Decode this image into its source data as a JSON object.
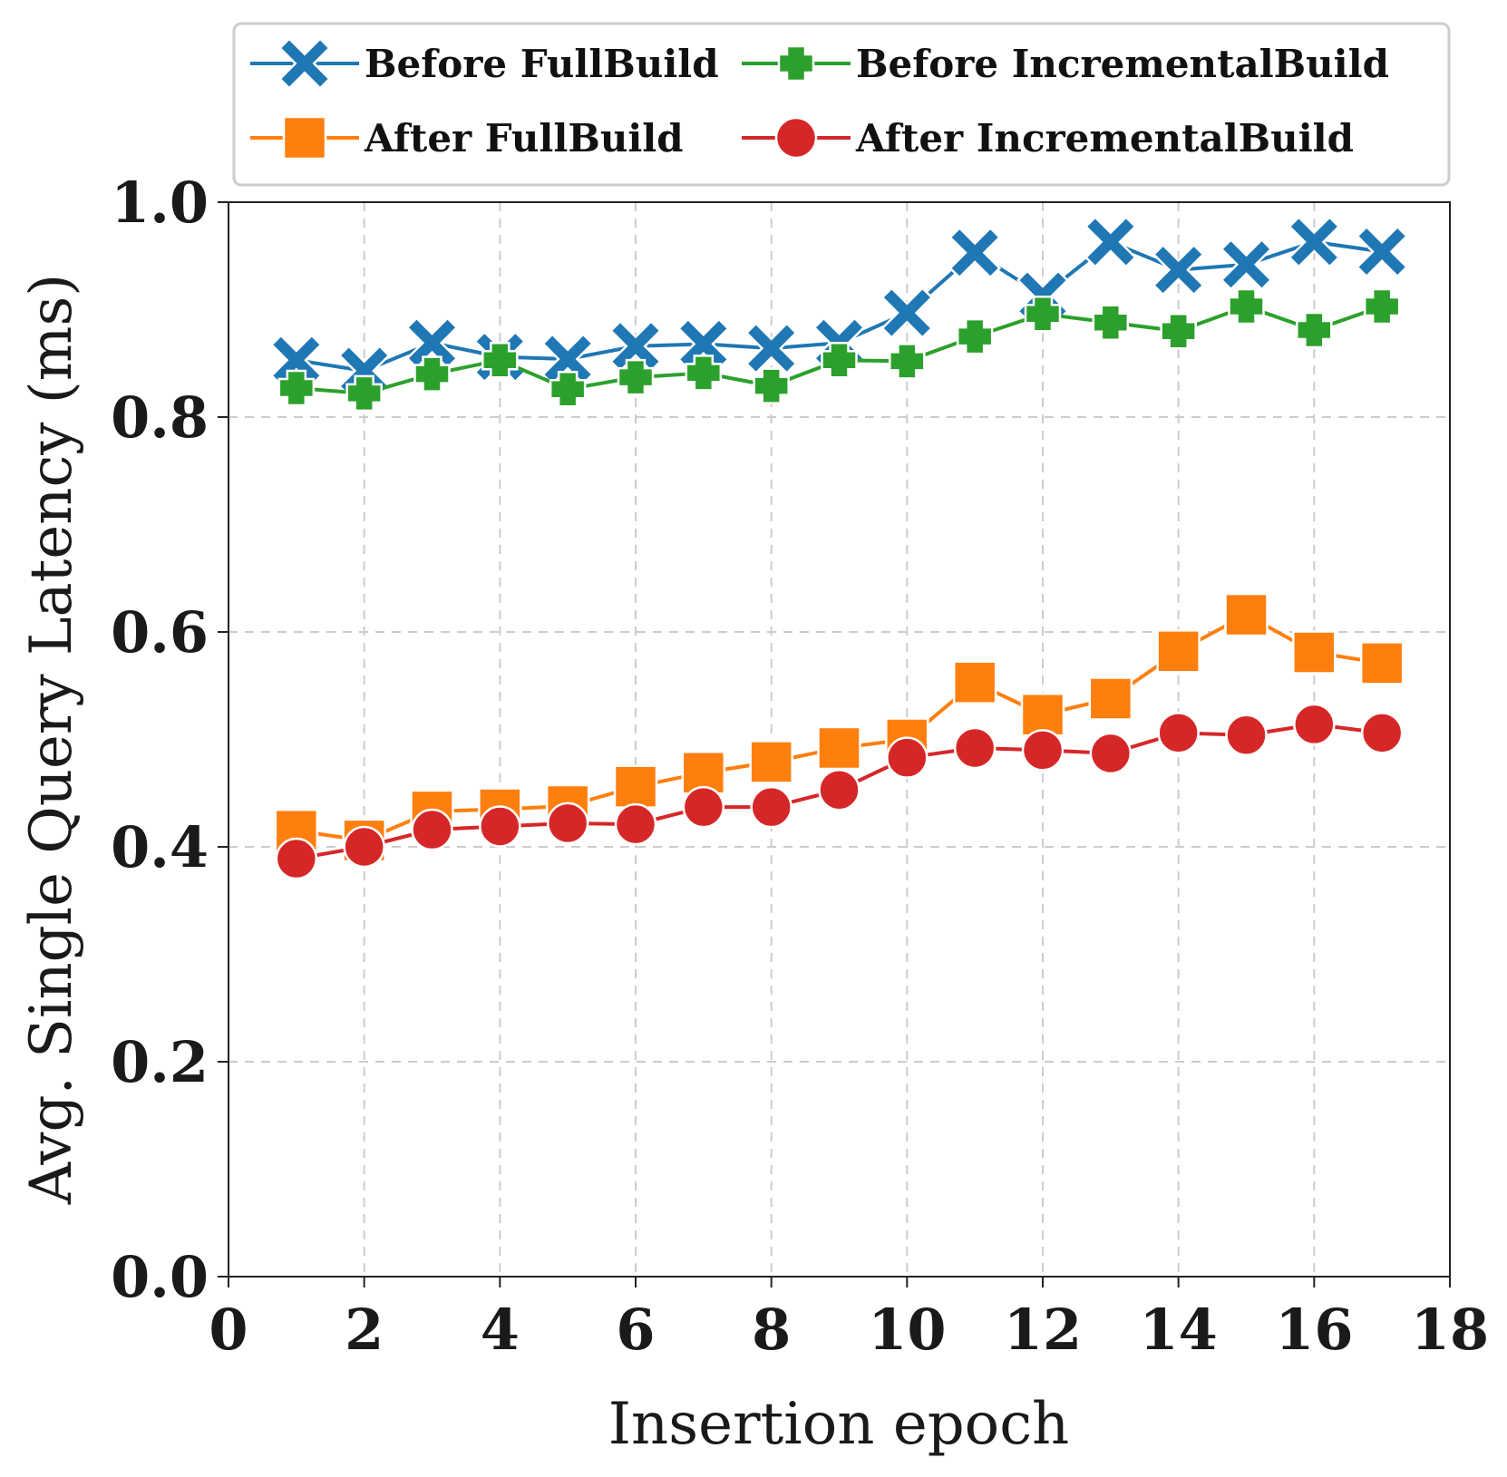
{
  "chart_data": {
    "type": "line",
    "xlabel": "Insertion epoch",
    "ylabel": "Avg. Single Query Latency (ms)",
    "xlim": [
      0,
      18
    ],
    "ylim": [
      0.0,
      1.0
    ],
    "xticks": [
      "0",
      "2",
      "4",
      "6",
      "8",
      "10",
      "12",
      "14",
      "16",
      "18"
    ],
    "yticks": [
      "0.0",
      "0.2",
      "0.4",
      "0.6",
      "0.8",
      "1.0"
    ],
    "grid": true,
    "legend_position": "top",
    "x": [
      1,
      2,
      3,
      4,
      5,
      6,
      7,
      8,
      9,
      10,
      11,
      12,
      13,
      14,
      15,
      16,
      17
    ],
    "series": [
      {
        "name": "Before FullBuild",
        "color": "#1f77b4",
        "marker": "x",
        "values": [
          0.853,
          0.843,
          0.869,
          0.856,
          0.854,
          0.866,
          0.868,
          0.864,
          0.869,
          0.897,
          0.953,
          0.913,
          0.963,
          0.937,
          0.942,
          0.963,
          0.954
        ]
      },
      {
        "name": "Before IncrementalBuild",
        "color": "#2ca02c",
        "marker": "plus",
        "values": [
          0.827,
          0.822,
          0.84,
          0.853,
          0.826,
          0.837,
          0.841,
          0.829,
          0.853,
          0.852,
          0.875,
          0.896,
          0.888,
          0.88,
          0.903,
          0.881,
          0.903
        ]
      },
      {
        "name": "After FullBuild",
        "color": "#ff7f0e",
        "marker": "square",
        "values": [
          0.415,
          0.406,
          0.433,
          0.435,
          0.438,
          0.456,
          0.469,
          0.479,
          0.492,
          0.5,
          0.553,
          0.523,
          0.538,
          0.582,
          0.616,
          0.581,
          0.571
        ]
      },
      {
        "name": "After IncrementalBuild",
        "color": "#d62728",
        "marker": "circle",
        "values": [
          0.389,
          0.4,
          0.416,
          0.419,
          0.422,
          0.421,
          0.437,
          0.437,
          0.453,
          0.483,
          0.492,
          0.49,
          0.487,
          0.506,
          0.504,
          0.514,
          0.506
        ]
      }
    ]
  }
}
